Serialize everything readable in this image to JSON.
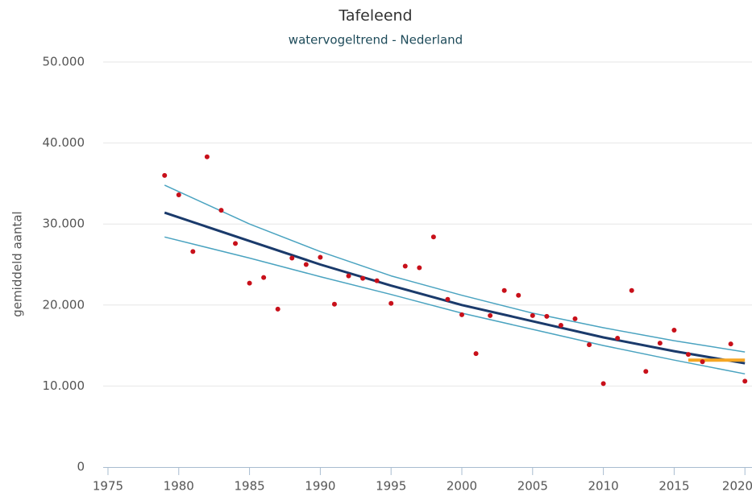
{
  "chart_data": {
    "type": "line",
    "title": "Tafeleend",
    "subtitle": "watervogeltrend - Nederland",
    "y_label": "gemiddeld aantal",
    "xlim": [
      1974.66,
      2020.5
    ],
    "xticks": [
      1975,
      1980,
      1985,
      1990,
      1995,
      2000,
      2005,
      2010,
      2015,
      2020
    ],
    "ylim": [
      0,
      50000
    ],
    "yticks": [
      0,
      {
        "value": 10000,
        "label": "10.000"
      },
      {
        "value": 20000,
        "label": "20.000"
      },
      {
        "value": 30000,
        "label": "30.000"
      },
      {
        "value": 40000,
        "label": "40.000"
      },
      {
        "value": 50000,
        "label": "50.000"
      }
    ],
    "grid": true,
    "series": [
      {
        "style": "line",
        "color": "#4aa3c0",
        "width": 1.5,
        "x": [
          1979,
          1985,
          1990,
          1995,
          2000,
          2005,
          2010,
          2015,
          2020
        ],
        "values": [
          34800,
          30000,
          26600,
          23600,
          21200,
          19000,
          17200,
          15600,
          14200
        ]
      },
      {
        "style": "line",
        "color": "#4aa3c0",
        "width": 1.5,
        "x": [
          1979,
          1985,
          1990,
          1995,
          2000,
          2005,
          2010,
          2015,
          2020
        ],
        "values": [
          28400,
          25800,
          23500,
          21300,
          19000,
          17000,
          15000,
          13200,
          11500
        ]
      },
      {
        "style": "line",
        "color": "#1a3a6b",
        "width": 3,
        "x": [
          1979,
          1985,
          1990,
          1995,
          2000,
          2005,
          2010,
          2015,
          2020
        ],
        "values": [
          31400,
          27900,
          25000,
          22400,
          20000,
          18000,
          16000,
          14300,
          12800
        ]
      },
      {
        "style": "line",
        "color": "#f5a623",
        "width": 4,
        "x": [
          2016,
          2020
        ],
        "values": [
          13200,
          13200
        ]
      },
      {
        "style": "markers",
        "color": "#c8101a",
        "width": 3,
        "x": [
          1979,
          1980,
          1981,
          1982,
          1983,
          1984,
          1985,
          1986,
          1987,
          1988,
          1989,
          1990,
          1991,
          1992,
          1993,
          1994,
          1995,
          1996,
          1997,
          1998,
          1999,
          2000,
          2001,
          2002,
          2003,
          2004,
          2005,
          2006,
          2007,
          2008,
          2009,
          2010,
          2011,
          2012,
          2013,
          2014,
          2015,
          2016,
          2017,
          2019,
          2020
        ],
        "values": [
          36000,
          33600,
          26600,
          38300,
          31700,
          27600,
          22700,
          23400,
          19500,
          25800,
          25000,
          25900,
          20100,
          23600,
          23300,
          23000,
          20200,
          24800,
          24600,
          28400,
          20700,
          18800,
          14000,
          18700,
          21800,
          21200,
          18700,
          18600,
          17500,
          18300,
          15100,
          10300,
          15900,
          21800,
          11800,
          15300,
          16900,
          13900,
          13000,
          15200,
          10600
        ]
      }
    ]
  }
}
